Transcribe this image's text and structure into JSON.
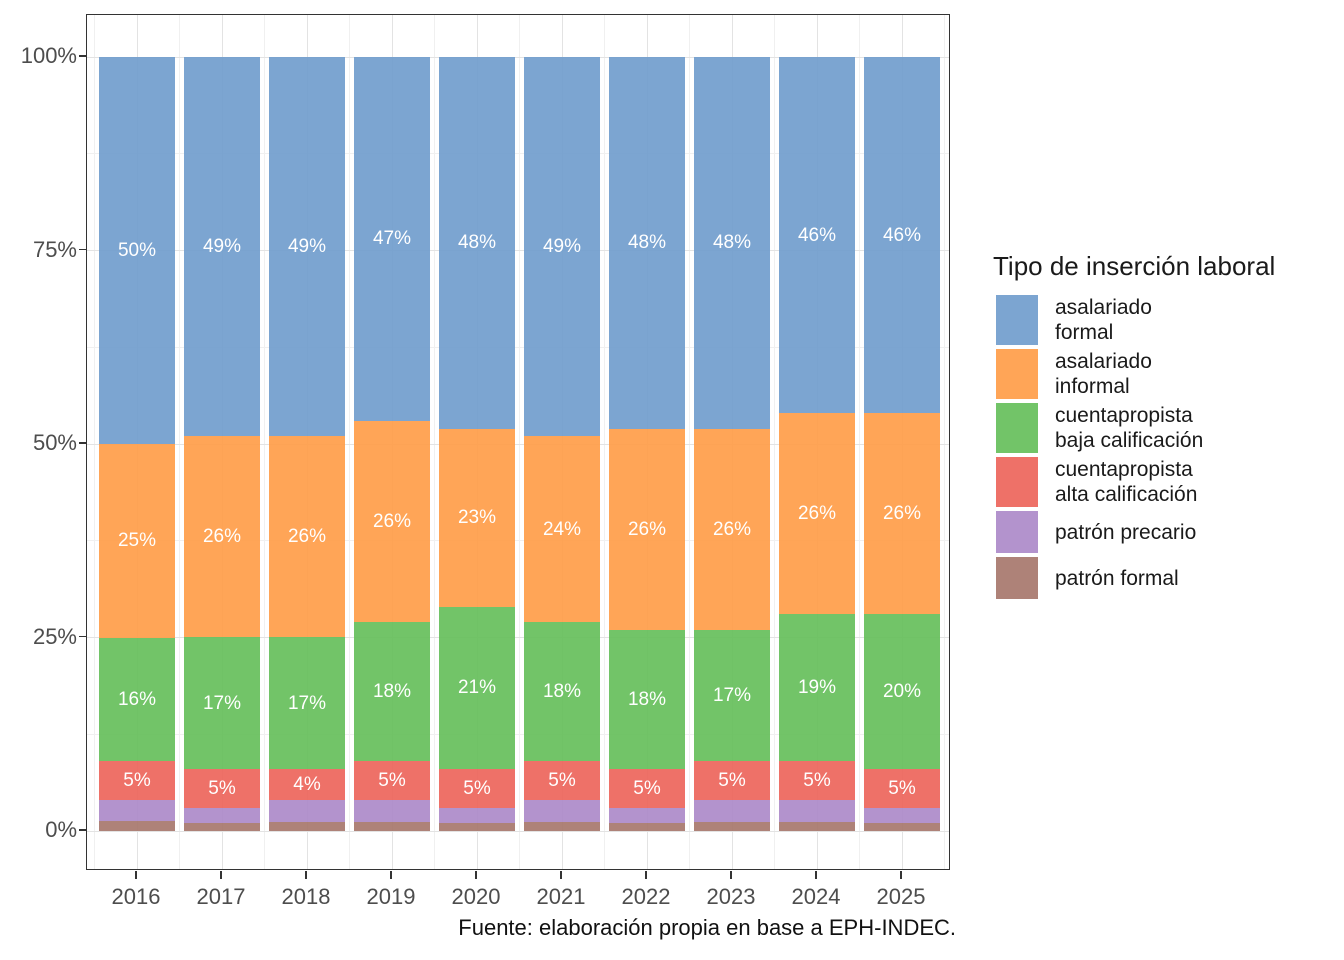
{
  "chart_data": {
    "type": "bar",
    "subtype": "stacked-percent",
    "title": "",
    "xlabel": "",
    "ylabel": "",
    "caption": "Fuente: elaboración propia en base a EPH-INDEC.",
    "legend_title": "Tipo de inserción laboral",
    "legend_position": "right",
    "grid": true,
    "fill_alpha": 0.93,
    "categories": [
      "2016",
      "2017",
      "2018",
      "2019",
      "2020",
      "2021",
      "2022",
      "2023",
      "2024",
      "2025"
    ],
    "series": [
      {
        "name": "asalariado formal",
        "color": "#729ECE",
        "labels_shown": true,
        "values": [
          50,
          49,
          49,
          47,
          48,
          49,
          48,
          48,
          46,
          46
        ]
      },
      {
        "name": "asalariado informal",
        "color": "#FF9E4A",
        "labels_shown": true,
        "values": [
          25,
          26,
          26,
          26,
          23,
          24,
          26,
          26,
          26,
          26
        ]
      },
      {
        "name": "cuentapropista baja calificación",
        "color": "#67BF5C",
        "labels_shown": true,
        "values": [
          16,
          17,
          17,
          18,
          21,
          18,
          18,
          17,
          19,
          20
        ]
      },
      {
        "name": "cuentapropista alta calificación",
        "color": "#ED665D",
        "labels_shown": true,
        "values": [
          5,
          5,
          4,
          5,
          5,
          5,
          5,
          5,
          5,
          5
        ]
      },
      {
        "name": "patrón precario",
        "color": "#AD8BC9",
        "labels_shown": false,
        "values": [
          2.7,
          2.0,
          2.8,
          2.8,
          2.0,
          2.8,
          2.0,
          2.8,
          2.8,
          2.0
        ]
      },
      {
        "name": "patrón formal",
        "color": "#A8786E",
        "labels_shown": false,
        "values": [
          1.3,
          1.0,
          1.2,
          1.2,
          1.0,
          1.2,
          1.0,
          1.2,
          1.2,
          1.0
        ]
      }
    ],
    "y_axis": {
      "range": [
        0,
        100
      ],
      "ticks": [
        {
          "label": "0%",
          "value": 0
        },
        {
          "label": "25%",
          "value": 25
        },
        {
          "label": "50%",
          "value": 50
        },
        {
          "label": "75%",
          "value": 75
        },
        {
          "label": "100%",
          "value": 100
        }
      ],
      "minor_ticks": [
        12.5,
        37.5,
        62.5,
        87.5
      ]
    }
  }
}
